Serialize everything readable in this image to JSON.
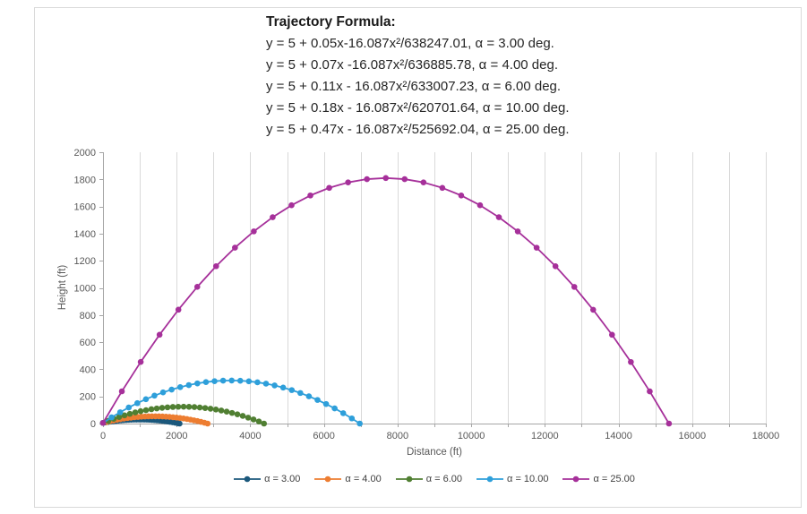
{
  "chart_data": {
    "type": "line",
    "annotation": {
      "title": "Trajectory Formula:",
      "lines": [
        "y = 5 + 0.05x-16.087x²/638247.01, α = 3.00 deg.",
        "y = 5 + 0.07x -16.087x²/636885.78, α = 4.00 deg.",
        "y = 5 + 0.11x - 16.087x²/633007.23, α = 6.00 deg.",
        "y = 5 + 0.18x - 16.087x²/620701.64, α = 10.00 deg.",
        "y = 5 + 0.47x - 16.087x²/525692.04, α = 25.00 deg."
      ]
    },
    "xlabel": "Distance (ft)",
    "ylabel": "Height (ft)",
    "xlim": [
      0,
      18000
    ],
    "ylim": [
      0,
      2000
    ],
    "x_tick_step": 2000,
    "x_minor_step": 1000,
    "y_tick_step": 200,
    "grid": "vertical-only",
    "legend_position": "bottom",
    "colors": {
      "grid": "#d9d9d9",
      "axis": "#a6a6a6",
      "tick_label": "#595959",
      "axis_title": "#595959"
    },
    "series": [
      {
        "name": "α = 3.00",
        "color": "#1b587c",
        "points": [
          [
            0,
            5
          ],
          [
            70,
            8.4
          ],
          [
            140,
            11.5
          ],
          [
            210,
            14.4
          ],
          [
            280,
            17.0
          ],
          [
            350,
            19.4
          ],
          [
            420,
            21.6
          ],
          [
            490,
            23.4
          ],
          [
            560,
            25.1
          ],
          [
            630,
            26.5
          ],
          [
            700,
            27.7
          ],
          [
            770,
            28.6
          ],
          [
            840,
            29.2
          ],
          [
            910,
            29.6
          ],
          [
            980,
            29.8
          ],
          [
            1050,
            29.7
          ],
          [
            1120,
            29.4
          ],
          [
            1190,
            28.8
          ],
          [
            1260,
            28.0
          ],
          [
            1330,
            26.9
          ],
          [
            1400,
            25.6
          ],
          [
            1470,
            24.0
          ],
          [
            1540,
            22.2
          ],
          [
            1610,
            20.2
          ],
          [
            1680,
            17.9
          ],
          [
            1750,
            15.3
          ],
          [
            1820,
            12.5
          ],
          [
            1890,
            9.5
          ],
          [
            1960,
            6.2
          ],
          [
            2030,
            2.6
          ],
          [
            2079,
            0
          ]
        ]
      },
      {
        "name": "α = 4.00",
        "color": "#ed7d31",
        "points": [
          [
            0,
            5
          ],
          [
            95,
            11.4
          ],
          [
            190,
            17.4
          ],
          [
            285,
            22.9
          ],
          [
            380,
            28.0
          ],
          [
            475,
            32.6
          ],
          [
            570,
            36.7
          ],
          [
            665,
            40.4
          ],
          [
            760,
            43.6
          ],
          [
            855,
            46.4
          ],
          [
            950,
            48.7
          ],
          [
            1045,
            50.6
          ],
          [
            1140,
            52.0
          ],
          [
            1235,
            52.9
          ],
          [
            1330,
            53.4
          ],
          [
            1425,
            53.5
          ],
          [
            1520,
            53.0
          ],
          [
            1615,
            52.2
          ],
          [
            1710,
            50.8
          ],
          [
            1805,
            49.1
          ],
          [
            1900,
            46.8
          ],
          [
            1995,
            44.1
          ],
          [
            2090,
            41.0
          ],
          [
            2185,
            37.4
          ],
          [
            2280,
            33.3
          ],
          [
            2375,
            28.8
          ],
          [
            2470,
            23.8
          ],
          [
            2565,
            18.4
          ],
          [
            2660,
            12.5
          ],
          [
            2755,
            6.2
          ],
          [
            2841,
            0
          ]
        ]
      },
      {
        "name": "α = 6.00",
        "color": "#507f32",
        "points": [
          [
            0,
            5
          ],
          [
            146,
            20.5
          ],
          [
            292,
            35.0
          ],
          [
            438,
            48.3
          ],
          [
            584,
            60.6
          ],
          [
            730,
            71.8
          ],
          [
            876,
            81.9
          ],
          [
            1022,
            90.9
          ],
          [
            1168,
            98.8
          ],
          [
            1314,
            105.7
          ],
          [
            1460,
            111.4
          ],
          [
            1606,
            116.1
          ],
          [
            1752,
            119.7
          ],
          [
            1898,
            122.2
          ],
          [
            2044,
            123.7
          ],
          [
            2190,
            124.0
          ],
          [
            2336,
            123.3
          ],
          [
            2482,
            121.5
          ],
          [
            2628,
            118.6
          ],
          [
            2774,
            114.6
          ],
          [
            2920,
            109.5
          ],
          [
            3066,
            103.3
          ],
          [
            3212,
            96.1
          ],
          [
            3358,
            87.8
          ],
          [
            3504,
            78.4
          ],
          [
            3650,
            67.9
          ],
          [
            3796,
            56.3
          ],
          [
            3942,
            43.7
          ],
          [
            4088,
            29.9
          ],
          [
            4234,
            15.1
          ],
          [
            4372,
            0
          ]
        ]
      },
      {
        "name": "α = 10.00",
        "color": "#2e9fda",
        "points": [
          [
            0,
            5
          ],
          [
            233,
            45.5
          ],
          [
            466,
            83.3
          ],
          [
            699,
            118.2
          ],
          [
            932,
            150.3
          ],
          [
            1165,
            179.5
          ],
          [
            1398,
            206.0
          ],
          [
            1631,
            229.6
          ],
          [
            1864,
            250.5
          ],
          [
            2097,
            268.5
          ],
          [
            2330,
            283.7
          ],
          [
            2563,
            296.1
          ],
          [
            2796,
            305.7
          ],
          [
            3029,
            312.4
          ],
          [
            3262,
            316.4
          ],
          [
            3495,
            317.5
          ],
          [
            3728,
            315.8
          ],
          [
            3961,
            311.4
          ],
          [
            4194,
            304.0
          ],
          [
            4427,
            293.9
          ],
          [
            4660,
            281.0
          ],
          [
            4893,
            265.2
          ],
          [
            5126,
            246.7
          ],
          [
            5359,
            225.3
          ],
          [
            5592,
            201.1
          ],
          [
            5825,
            174.1
          ],
          [
            6058,
            144.3
          ],
          [
            6291,
            111.7
          ],
          [
            6524,
            76.2
          ],
          [
            6757,
            38.0
          ],
          [
            6973,
            0
          ]
        ]
      },
      {
        "name": "α = 25.00",
        "color": "#a6309a",
        "points": [
          [
            0,
            5
          ],
          [
            512,
            237.6
          ],
          [
            1024,
            454.2
          ],
          [
            1536,
            654.7
          ],
          [
            2048,
            839.2
          ],
          [
            2560,
            1007.6
          ],
          [
            3072,
            1160.1
          ],
          [
            3584,
            1296.4
          ],
          [
            4096,
            1416.7
          ],
          [
            4608,
            1521.0
          ],
          [
            5120,
            1609.2
          ],
          [
            5632,
            1681.4
          ],
          [
            6144,
            1737.5
          ],
          [
            6656,
            1777.6
          ],
          [
            7168,
            1801.7
          ],
          [
            7680,
            1809.7
          ],
          [
            8192,
            1801.6
          ],
          [
            8704,
            1777.6
          ],
          [
            9216,
            1737.4
          ],
          [
            9728,
            1681.3
          ],
          [
            10240,
            1609.1
          ],
          [
            10752,
            1520.8
          ],
          [
            11264,
            1416.5
          ],
          [
            11776,
            1296.2
          ],
          [
            12288,
            1159.8
          ],
          [
            12800,
            1007.4
          ],
          [
            13312,
            838.9
          ],
          [
            13824,
            654.4
          ],
          [
            14336,
            453.8
          ],
          [
            14848,
            237.2
          ],
          [
            15370,
            0
          ]
        ]
      }
    ]
  }
}
